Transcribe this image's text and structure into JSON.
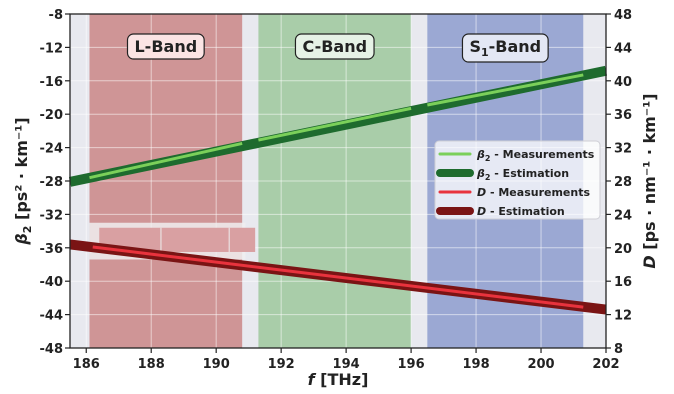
{
  "chart_data": {
    "type": "line",
    "x_axis": {
      "label_symbol": "f",
      "label_unit": " [THz]",
      "lim": [
        185.5,
        202
      ],
      "ticks": [
        186,
        188,
        190,
        192,
        194,
        196,
        198,
        200,
        202
      ]
    },
    "y_axis_left": {
      "label_symbol": "β",
      "label_sub": "2",
      "label_unit": " [ps² · km⁻¹]",
      "lim": [
        -48,
        -8
      ],
      "ticks": [
        -48,
        -44,
        -40,
        -36,
        -32,
        -28,
        -24,
        -20,
        -16,
        -12,
        -8
      ]
    },
    "y_axis_right": {
      "label_symbol": "D",
      "label_unit": " [ps · nm⁻¹ · km⁻¹]",
      "lim": [
        8,
        48
      ],
      "ticks": [
        8,
        12,
        16,
        20,
        24,
        28,
        32,
        36,
        40,
        44,
        48
      ]
    },
    "bands": [
      {
        "label": "L-Band",
        "label_sub": "",
        "label_suffix": "",
        "x_start": 186.1,
        "x_end": 190.8,
        "color": "#cf9596",
        "label_bg": "#fbe4e4"
      },
      {
        "label": "C-Band",
        "label_sub": "",
        "label_suffix": "",
        "x_start": 191.3,
        "x_end": 196.0,
        "color": "#a9cda9",
        "label_bg": "#e6f2e6"
      },
      {
        "label": "S",
        "label_sub": "1",
        "label_suffix": "-Band",
        "x_start": 196.5,
        "x_end": 201.3,
        "color": "#9ba8d3",
        "label_bg": "#e3e7f4"
      }
    ],
    "series": [
      {
        "name_symbol": "β",
        "name_sub": "2",
        "name_rest": " - Measurements",
        "axis": "left",
        "style": "measurement",
        "color": "#7bd05a",
        "x": [
          186.1,
          190.8
        ],
        "y": [
          -27.6,
          -23.5
        ]
      },
      {
        "name_symbol": "β",
        "name_sub": "2",
        "name_rest": " - Estimation",
        "axis": "left",
        "style": "estimation",
        "color": "#1e6b2e",
        "x": [
          185.5,
          202
        ],
        "y": [
          -28.1,
          -14.8
        ]
      },
      {
        "name_symbol": "D",
        "name_sub": "",
        "name_rest": " - Measurements",
        "axis": "right",
        "style": "measurement",
        "color": "#e8333d",
        "x": [
          186.2,
          201.3
        ],
        "y": [
          20.1,
          12.9
        ]
      },
      {
        "name_symbol": "D",
        "name_sub": "",
        "name_rest": " - Estimation",
        "axis": "right",
        "style": "estimation",
        "color": "#7a1414",
        "x": [
          185.5,
          202
        ],
        "y": [
          20.4,
          12.6
        ]
      }
    ],
    "extra_measurements": [
      {
        "series": 0,
        "x": [
          191.3,
          196.0
        ],
        "y": [
          -23.1,
          -19.3
        ]
      },
      {
        "series": 0,
        "x": [
          196.5,
          201.3
        ],
        "y": [
          -18.9,
          -15.3
        ]
      }
    ],
    "legend_position": "center-right",
    "grid": true
  }
}
